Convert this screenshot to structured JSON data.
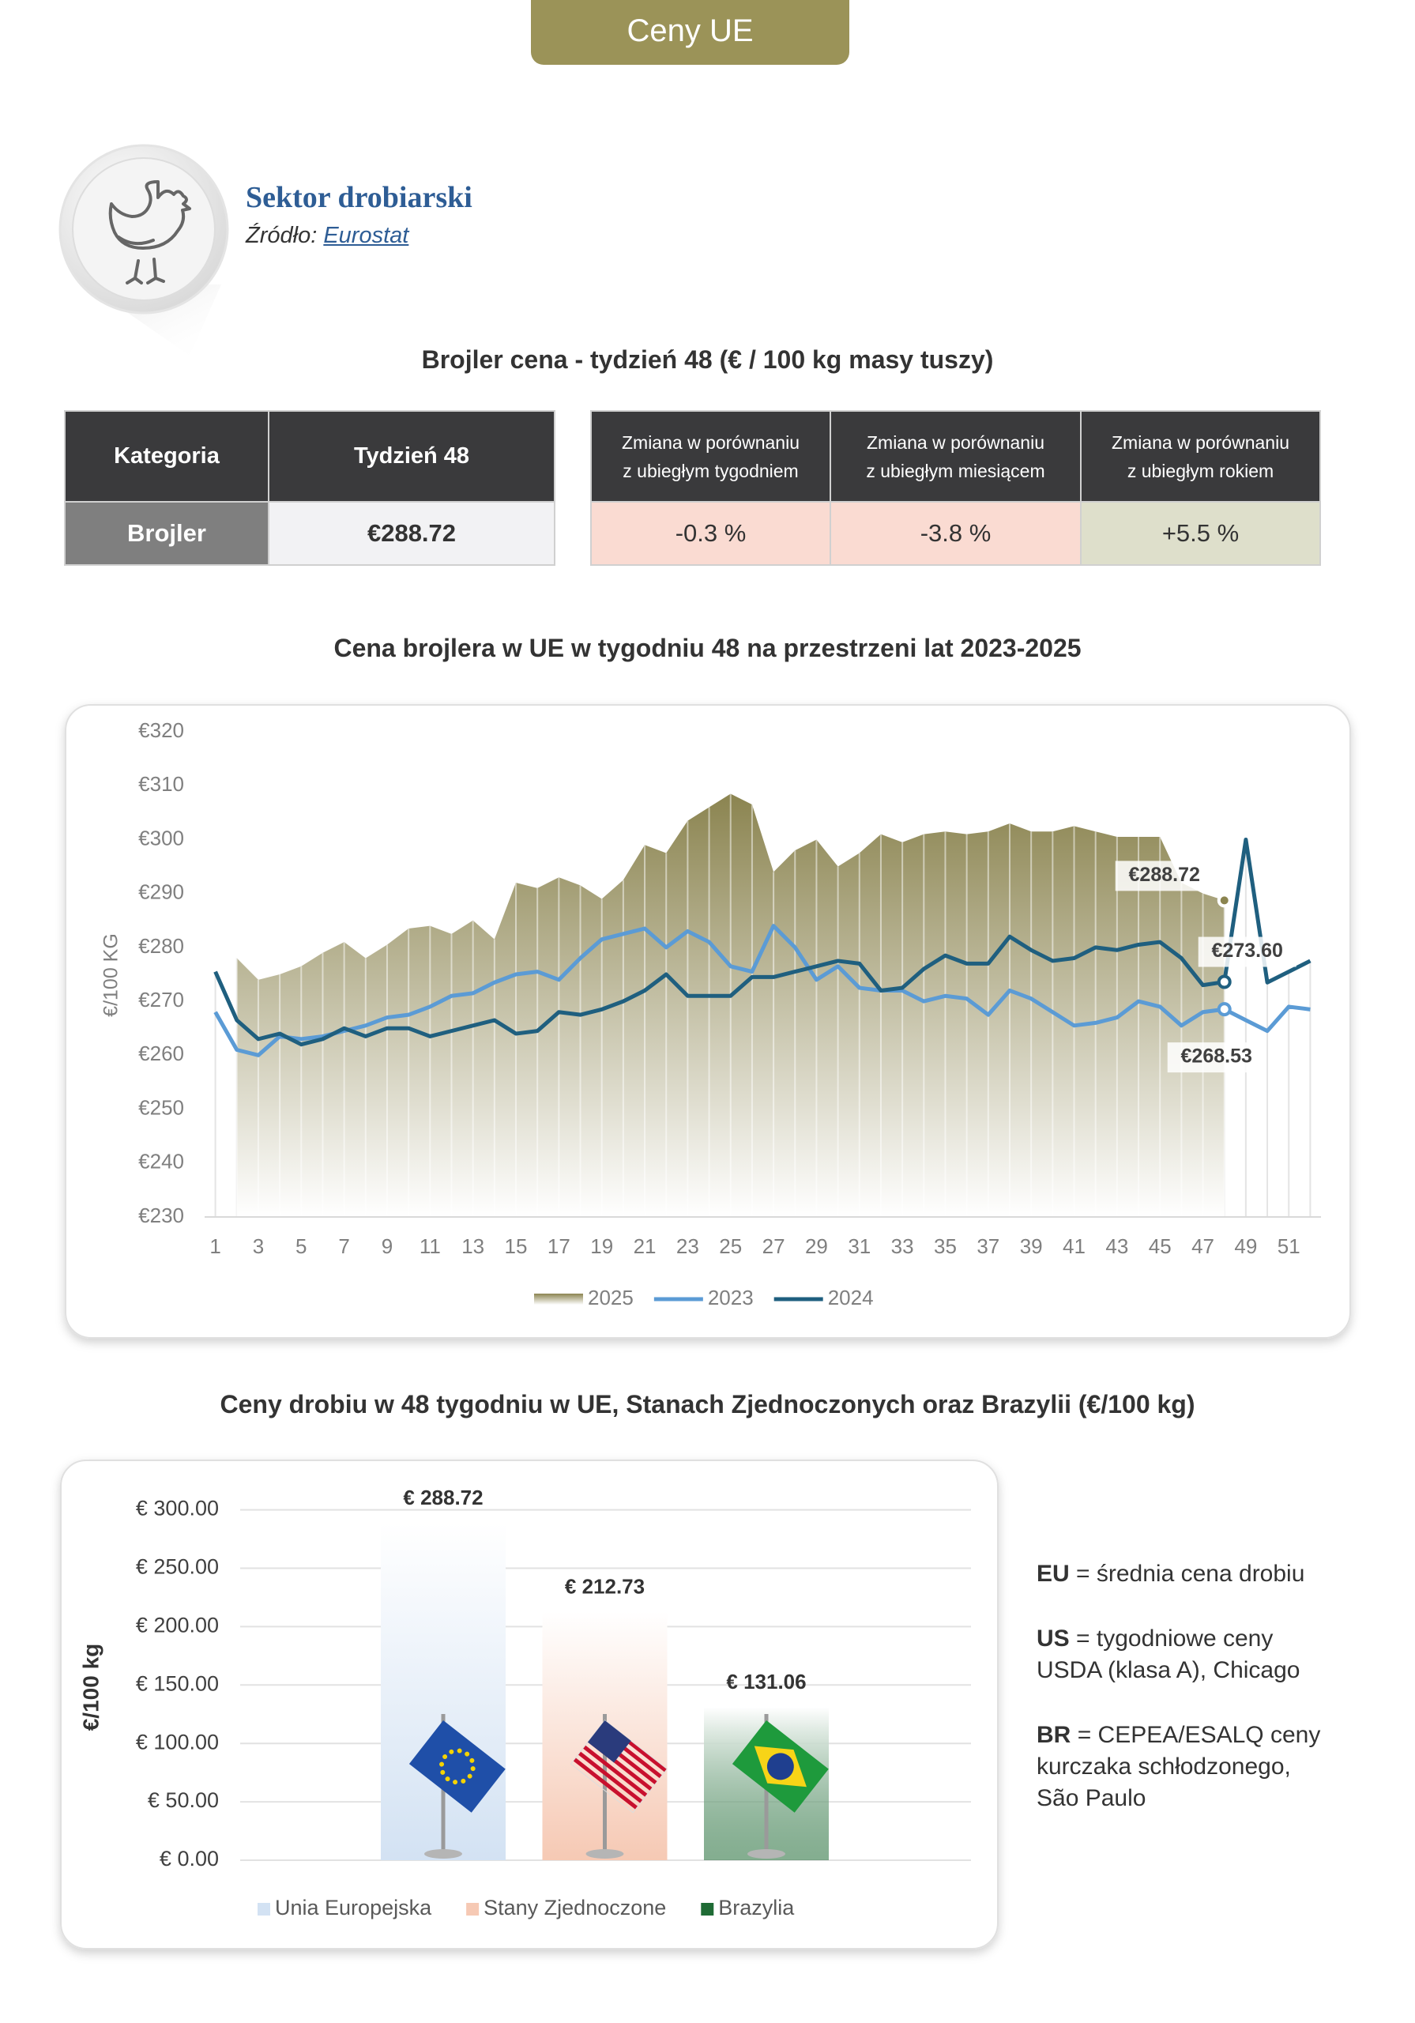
{
  "header": {
    "tab": "Ceny UE",
    "title": "Sektor drobiarski",
    "source_label": "Źródło:",
    "source_link": "Eurostat"
  },
  "table": {
    "title": "Brojler cena - tydzień 48 (€ / 100 kg masy tuszy)",
    "left": {
      "headers": [
        "Kategoria",
        "Tydzień 48"
      ],
      "rows": [
        [
          "Brojler",
          "€288.72"
        ]
      ]
    },
    "right": {
      "headers": [
        [
          "Zmiana w porównaniu",
          "z ubiegłym tygodniem"
        ],
        [
          "Zmiana w porównaniu",
          "z ubiegłym miesiącem"
        ],
        [
          "Zmiana w porównaniu",
          "z ubiegłym rokiem"
        ]
      ],
      "rows": [
        [
          "-0.3 %",
          "-3.8 %",
          "+5.5 %"
        ]
      ]
    }
  },
  "chart_data": [
    {
      "type": "line",
      "title": "Cena brojlera w UE w tygodniu 48 na przestrzeni lat 2023-2025",
      "y_label": "€/100 KG",
      "x": [
        1,
        2,
        3,
        4,
        5,
        6,
        7,
        8,
        9,
        10,
        11,
        12,
        13,
        14,
        15,
        16,
        17,
        18,
        19,
        20,
        21,
        22,
        23,
        24,
        25,
        26,
        27,
        28,
        29,
        30,
        31,
        32,
        33,
        34,
        35,
        36,
        37,
        38,
        39,
        40,
        41,
        42,
        43,
        44,
        45,
        46,
        47,
        48,
        49,
        50,
        51,
        52
      ],
      "xlim": [
        0.5,
        52.5
      ],
      "xticks": [
        1,
        3,
        5,
        7,
        9,
        11,
        13,
        15,
        17,
        19,
        21,
        23,
        25,
        27,
        29,
        31,
        33,
        35,
        37,
        39,
        41,
        43,
        45,
        47,
        49,
        51
      ],
      "ylim": [
        230,
        320
      ],
      "yticks": [
        {
          "value": 230,
          "label": "€230"
        },
        {
          "value": 240,
          "label": "€240"
        },
        {
          "value": 250,
          "label": "€250"
        },
        {
          "value": 260,
          "label": "€260"
        },
        {
          "value": 270,
          "label": "€270"
        },
        {
          "value": 280,
          "label": "€280"
        },
        {
          "value": 290,
          "label": "€290"
        },
        {
          "value": 300,
          "label": "€300"
        },
        {
          "value": 310,
          "label": "€310"
        },
        {
          "value": 320,
          "label": "€320"
        }
      ],
      "grid": false,
      "legend": "bottom",
      "series": [
        {
          "name": "2025",
          "color": "#8b8450",
          "area": true,
          "values": [
            null,
            278,
            274,
            275,
            276.5,
            279,
            281,
            278,
            280.5,
            283.5,
            284,
            282.5,
            285,
            281.5,
            292,
            291,
            293,
            291.5,
            289,
            292.5,
            299,
            297.5,
            303.5,
            306,
            308.5,
            306.5,
            294,
            298,
            300,
            295,
            297.5,
            301,
            299.5,
            301,
            301.5,
            301,
            301.5,
            303,
            301.5,
            301.5,
            302.5,
            301.5,
            300.5,
            300.5,
            300.5,
            292,
            290,
            288.72,
            null,
            null,
            null,
            null
          ],
          "value_labels": [
            null,
            null,
            null,
            null,
            null,
            null,
            null,
            null,
            null,
            null,
            null,
            null,
            null,
            null,
            null,
            null,
            null,
            null,
            null,
            null,
            null,
            null,
            null,
            null,
            null,
            null,
            null,
            null,
            null,
            null,
            null,
            null,
            null,
            null,
            null,
            null,
            null,
            null,
            null,
            null,
            null,
            null,
            null,
            null,
            null,
            null,
            null,
            "€288.72",
            null,
            null,
            null,
            null
          ]
        },
        {
          "name": "2023",
          "color": "#5b9bd5",
          "values": [
            268,
            261,
            260,
            263.5,
            263,
            263.5,
            264.5,
            265.5,
            267,
            267.5,
            269,
            271,
            271.5,
            273.5,
            275,
            275.5,
            274,
            278,
            281.5,
            282.5,
            283.5,
            280,
            283,
            281,
            276.5,
            275.5,
            284,
            280,
            274,
            276.5,
            272.5,
            272,
            272,
            270,
            271,
            270.5,
            267.5,
            272,
            270.5,
            268,
            265.5,
            266,
            267,
            270,
            269,
            265.5,
            268,
            268.53,
            266.5,
            264.5,
            269,
            268.5
          ],
          "value_labels": [
            null,
            null,
            null,
            null,
            null,
            null,
            null,
            null,
            null,
            null,
            null,
            null,
            null,
            null,
            null,
            null,
            null,
            null,
            null,
            null,
            null,
            null,
            null,
            null,
            null,
            null,
            null,
            null,
            null,
            null,
            null,
            null,
            null,
            null,
            null,
            null,
            null,
            null,
            null,
            null,
            null,
            null,
            null,
            null,
            null,
            null,
            null,
            "€268.53",
            null,
            null,
            null,
            null
          ]
        },
        {
          "name": "2024",
          "color": "#1f5f7f",
          "values": [
            275.5,
            266.5,
            263,
            264,
            262,
            263,
            265,
            263.5,
            265,
            265,
            263.5,
            264.5,
            265.5,
            266.5,
            264,
            264.5,
            268,
            267.5,
            268.5,
            270,
            272,
            275,
            271,
            271,
            271,
            274.5,
            274.5,
            275.5,
            276.5,
            277.5,
            277,
            272,
            272.5,
            276,
            278.5,
            277,
            277,
            282,
            279.5,
            277.5,
            278,
            280,
            279.5,
            280.5,
            281,
            278,
            273,
            273.6,
            300,
            273.5,
            275.5,
            277.5
          ],
          "value_labels": [
            null,
            null,
            null,
            null,
            null,
            null,
            null,
            null,
            null,
            null,
            null,
            null,
            null,
            null,
            null,
            null,
            null,
            null,
            null,
            null,
            null,
            null,
            null,
            null,
            null,
            null,
            null,
            null,
            null,
            null,
            null,
            null,
            null,
            null,
            null,
            null,
            null,
            null,
            null,
            null,
            null,
            null,
            null,
            null,
            null,
            null,
            null,
            "€273.60",
            null,
            null,
            null,
            null
          ]
        }
      ]
    },
    {
      "type": "bar",
      "title": "Ceny drobiu w 48 tygodniu w UE, Stanach Zjednoczonych oraz Brazylii (€/100 kg)",
      "y_label": "€/100 kg",
      "categories": [
        "Unia Europejska",
        "Stany Zjednoczone",
        "Brazylia"
      ],
      "values": [
        288.72,
        212.73,
        131.06
      ],
      "value_labels": [
        "€ 288.72",
        "€ 212.73",
        "€ 131.06"
      ],
      "colors": [
        "#d3e2f3",
        "#f6c9b4",
        "#1f6b35"
      ],
      "ylim": [
        0,
        320
      ],
      "yticks": [
        {
          "value": 0,
          "label": "€ 0.00"
        },
        {
          "value": 50,
          "label": "€ 50.00"
        },
        {
          "value": 100,
          "label": "€ 100.00"
        },
        {
          "value": 150,
          "label": "€ 150.00"
        },
        {
          "value": 200,
          "label": "€ 200.00"
        },
        {
          "value": 250,
          "label": "€ 250.00"
        },
        {
          "value": 300,
          "label": "€ 300.00"
        }
      ],
      "grid": true,
      "legend": "bottom"
    }
  ],
  "notes": [
    {
      "code": "EU",
      "lines": [
        "= średnia cena drobiu"
      ]
    },
    {
      "code": "US",
      "lines": [
        "= tygodniowe ceny",
        "USDA (klasa A), Chicago"
      ]
    },
    {
      "code": "BR",
      "lines": [
        "= CEPEA/ESALQ ceny",
        "kurczaka schłodzonego,",
        "São Paulo"
      ]
    }
  ]
}
